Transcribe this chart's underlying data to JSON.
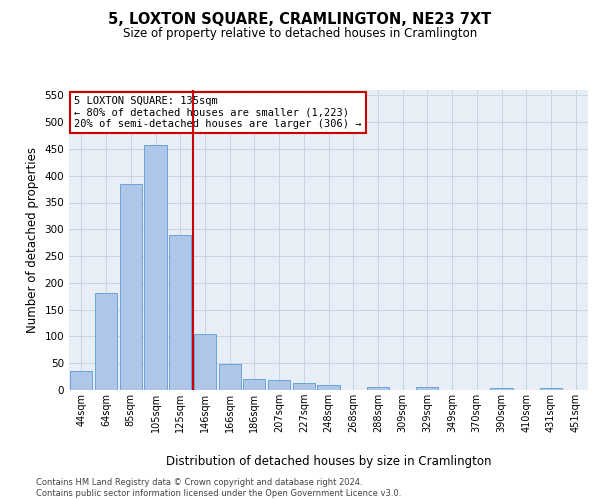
{
  "title": "5, LOXTON SQUARE, CRAMLINGTON, NE23 7XT",
  "subtitle": "Size of property relative to detached houses in Cramlington",
  "xlabel": "Distribution of detached houses by size in Cramlington",
  "ylabel": "Number of detached properties",
  "footer_line1": "Contains HM Land Registry data © Crown copyright and database right 2024.",
  "footer_line2": "Contains public sector information licensed under the Open Government Licence v3.0.",
  "categories": [
    "44sqm",
    "64sqm",
    "85sqm",
    "105sqm",
    "125sqm",
    "146sqm",
    "166sqm",
    "186sqm",
    "207sqm",
    "227sqm",
    "248sqm",
    "268sqm",
    "288sqm",
    "309sqm",
    "329sqm",
    "349sqm",
    "370sqm",
    "390sqm",
    "410sqm",
    "431sqm",
    "451sqm"
  ],
  "values": [
    35,
    182,
    385,
    458,
    290,
    104,
    49,
    21,
    19,
    14,
    10,
    0,
    5,
    0,
    5,
    0,
    0,
    4,
    0,
    4,
    0
  ],
  "bar_color": "#aec6e8",
  "bar_edge_color": "#5b9bd5",
  "grid_color": "#c8d4e3",
  "background_color": "#e8eef5",
  "vline_x_index": 4,
  "vline_color": "#cc0000",
  "annotation_text": "5 LOXTON SQUARE: 135sqm\n← 80% of detached houses are smaller (1,223)\n20% of semi-detached houses are larger (306) →",
  "annotation_box_color": "#ffffff",
  "annotation_box_edge": "#cc0000",
  "ylim": [
    0,
    560
  ],
  "yticks": [
    0,
    50,
    100,
    150,
    200,
    250,
    300,
    350,
    400,
    450,
    500,
    550
  ]
}
